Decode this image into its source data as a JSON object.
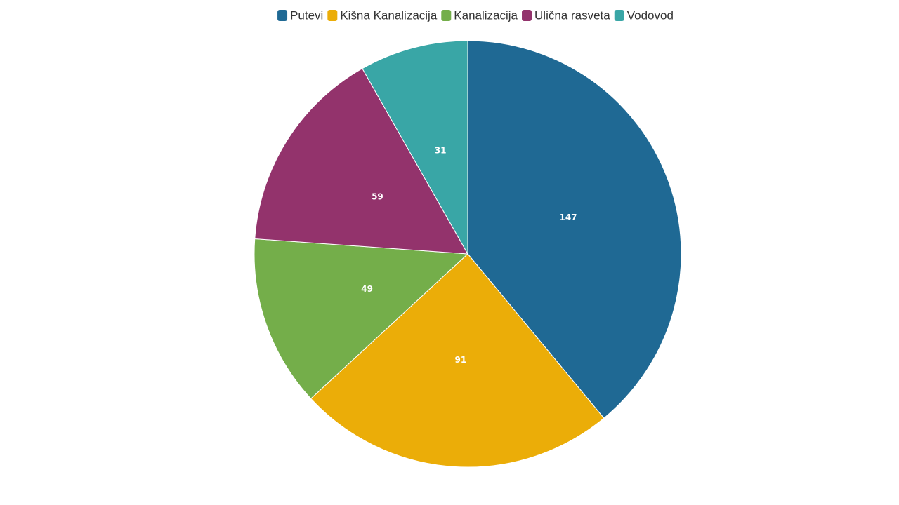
{
  "chart_data": {
    "type": "pie",
    "categories": [
      "Putevi",
      "Kišna Kanalizacija",
      "Kanalizacija",
      "Ulična rasveta",
      "Vodovod"
    ],
    "values": [
      147,
      91,
      49,
      59,
      31
    ],
    "colors": [
      "#1f6994",
      "#ebad08",
      "#74ae4a",
      "#93336c",
      "#39a6a6"
    ]
  }
}
